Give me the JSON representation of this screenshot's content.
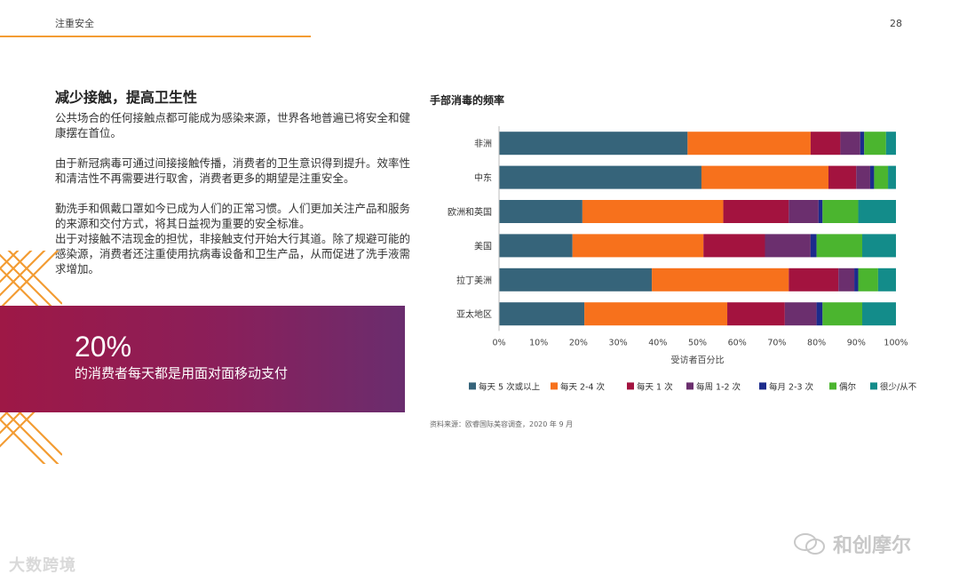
{
  "header": {
    "title": "注重安全",
    "page_number": "28"
  },
  "left": {
    "heading": "减少接触，提高卫生性",
    "paragraphs": [
      "公共场合的任何接触点都可能成为感染来源，世界各地普遍已将安全和健康摆在首位。",
      "由于新冠病毒可通过间接接触传播，消费者的卫生意识得到提升。效率性和清洁性不再需要进行取舍，消费者更多的期望是注重安全。",
      "勤洗手和佩戴口罩如今已成为人们的正常习惯。人们更加关注产品和服务的来源和交付方式，将其日益视为重要的安全标准。",
      "出于对接触不洁现金的担忧，非接触支付开始大行其道。除了规避可能的感染源，消费者还注重使用抗病毒设备和卫生产品，从而促进了洗手液需求增加。"
    ]
  },
  "stat": {
    "value": "20%",
    "text": "的消费者每天都是用面对面移动支付"
  },
  "chart_data": {
    "type": "bar",
    "orientation": "horizontal",
    "stacked": true,
    "title": "手部消毒的频率",
    "xlabel": "受访者百分比",
    "ylabel": "",
    "xlim": [
      0,
      100
    ],
    "x_ticks": [
      "0%",
      "10%",
      "20%",
      "30%",
      "40%",
      "50%",
      "60%",
      "70%",
      "80%",
      "90%",
      "100%"
    ],
    "grid": false,
    "legend_position": "bottom",
    "categories": [
      "非洲",
      "中东",
      "欧洲和英国",
      "美国",
      "拉丁美洲",
      "亚太地区"
    ],
    "series": [
      {
        "name": "每天 5 次或以上",
        "color": "#36647a",
        "values": [
          47.5,
          51,
          21,
          18.5,
          38.5,
          21.5
        ]
      },
      {
        "name": "每天 2-4 次",
        "color": "#f7711c",
        "values": [
          31,
          32,
          35.5,
          33,
          34.5,
          36
        ]
      },
      {
        "name": "每天 1 次",
        "color": "#a3133f",
        "values": [
          7.5,
          7,
          16.5,
          15.5,
          12.5,
          14.5
        ]
      },
      {
        "name": "每周 1-2 次",
        "color": "#6b2f6e",
        "values": [
          5,
          3.5,
          7.5,
          11.5,
          4,
          8
        ]
      },
      {
        "name": "每月 2-3 次",
        "color": "#1c2b8c",
        "values": [
          1,
          1,
          1,
          1.5,
          1,
          1.5
        ]
      },
      {
        "name": "偶尔",
        "color": "#4bb52f",
        "values": [
          5.5,
          3.5,
          9,
          11.5,
          5,
          10
        ]
      },
      {
        "name": "很少/从不",
        "color": "#138c8a",
        "values": [
          2.5,
          2,
          9.5,
          8.5,
          4.5,
          8.5
        ]
      }
    ]
  },
  "source": "资料来源：欧睿国际美容调查，2020 年 9 月",
  "watermarks": {
    "left": "大数跨境",
    "right": "和创摩尔"
  },
  "colors": {
    "accent_orange": "#f39c33",
    "stat_box": "#8a1f5a"
  }
}
